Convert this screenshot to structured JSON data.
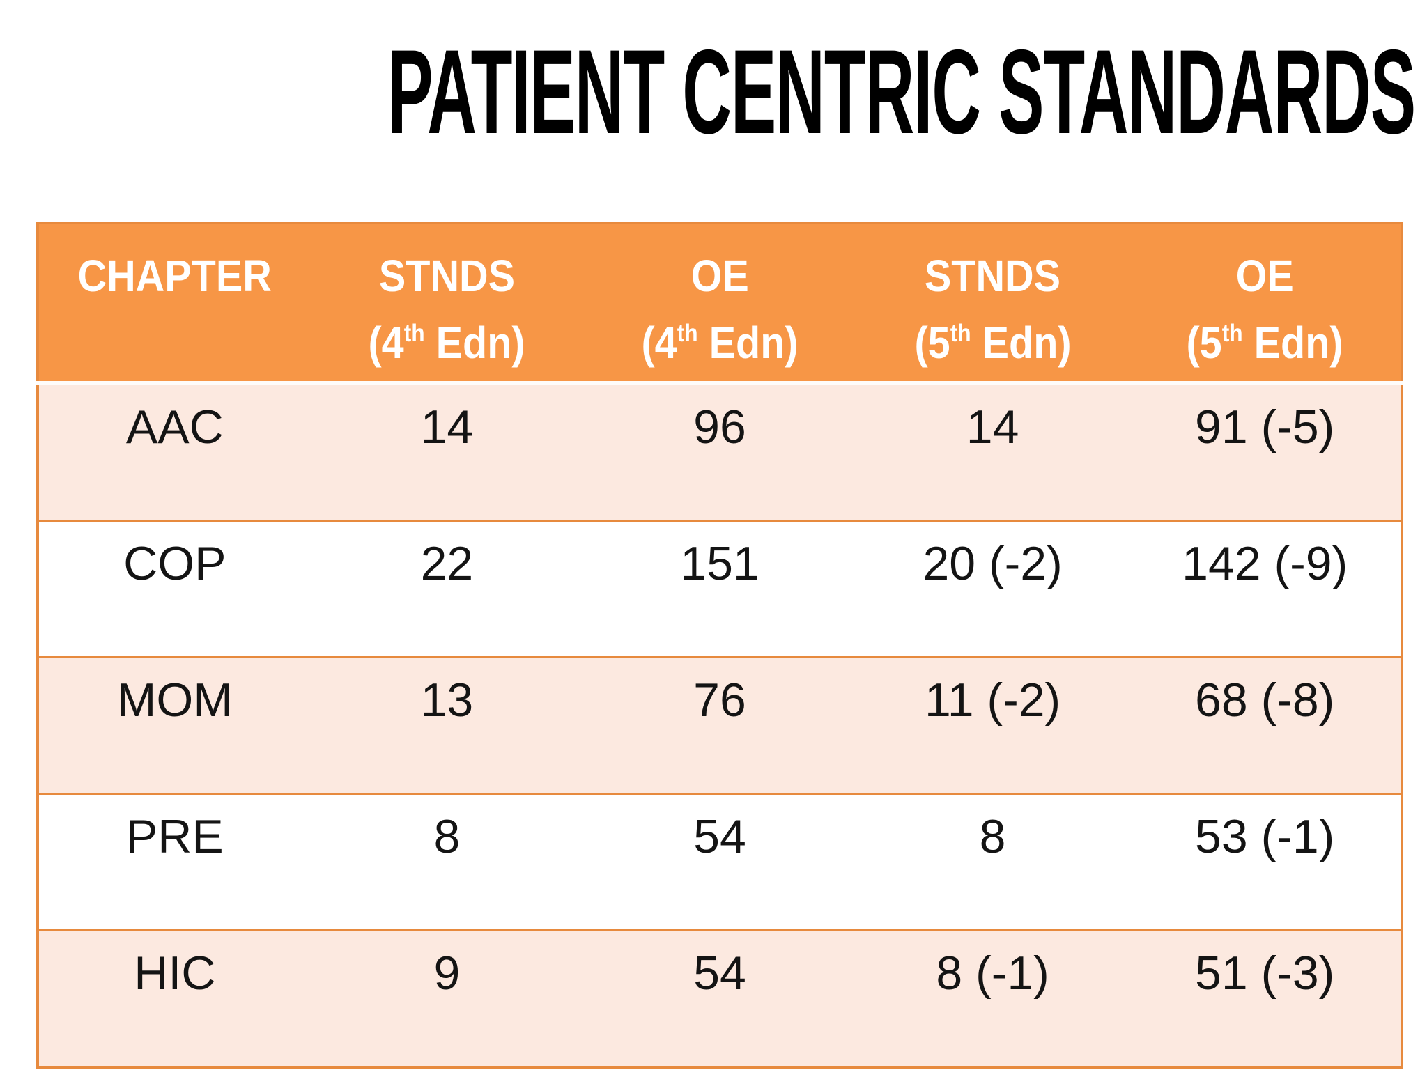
{
  "title": "PATIENT CENTRIC STANDARDS",
  "table": {
    "columns": [
      {
        "name": "CHAPTER",
        "edn_open": "",
        "edn_sup": "",
        "edn_close": ""
      },
      {
        "name": "STNDS",
        "edn_open": "(4",
        "edn_sup": "th",
        "edn_close": " Edn)"
      },
      {
        "name": "OE",
        "edn_open": "(4",
        "edn_sup": "th",
        "edn_close": " Edn)"
      },
      {
        "name": "STNDS",
        "edn_open": "(5",
        "edn_sup": "th",
        "edn_close": " Edn)"
      },
      {
        "name": "OE",
        "edn_open": "(5",
        "edn_sup": "th",
        "edn_close": " Edn)"
      }
    ],
    "rows": [
      {
        "chapter": "AAC",
        "stnds_4th": "14",
        "oe_4th": "96",
        "stnds_5th": "14",
        "oe_5th": "91 (-5)"
      },
      {
        "chapter": "COP",
        "stnds_4th": "22",
        "oe_4th": "151",
        "stnds_5th": "20 (-2)",
        "oe_5th": "142 (-9)"
      },
      {
        "chapter": "MOM",
        "stnds_4th": "13",
        "oe_4th": "76",
        "stnds_5th": "11 (-2)",
        "oe_5th": "68 (-8)"
      },
      {
        "chapter": "PRE",
        "stnds_4th": "8",
        "oe_4th": "54",
        "stnds_5th": "8",
        "oe_5th": "53 (-1)"
      },
      {
        "chapter": "HIC",
        "stnds_4th": "9",
        "oe_4th": "54",
        "stnds_5th": "8 (-1)",
        "oe_5th": "51 (-3)"
      }
    ]
  },
  "colors": {
    "header_bg": "#F79646",
    "header_text": "#FFFFFF",
    "banded_row_bg": "#FCE9E0",
    "plain_row_bg": "#FFFFFF",
    "border": "#E78A3E",
    "title_text": "#000000",
    "cell_text": "#141414"
  }
}
